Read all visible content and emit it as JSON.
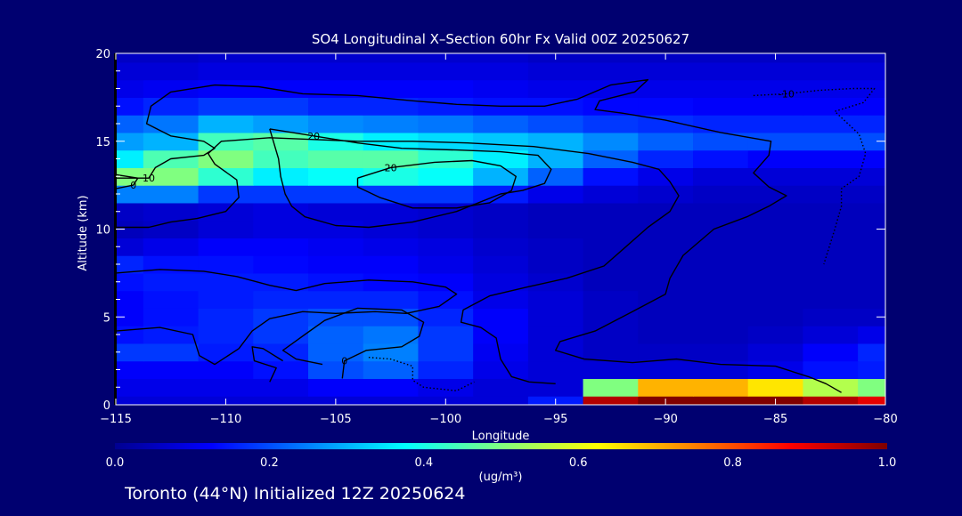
{
  "chart_data": {
    "type": "heatmap",
    "title": "SO4 Longitudinal X–Section 60hr  Fx Valid 00Z 20250627",
    "subtitle": "Toronto (44°N) Initialized 12Z 20250624",
    "xlabel": "Longitude",
    "ylabel": "Altitude (km)",
    "xlim": [
      -115,
      -80
    ],
    "ylim": [
      0,
      20
    ],
    "x_ticks": [
      -115,
      -110,
      -105,
      -100,
      -95,
      -90,
      -85,
      -80
    ],
    "x_tick_labels": [
      "−115",
      "−110",
      "−105",
      "−100",
      "−95",
      "−90",
      "−85",
      "−80"
    ],
    "y_ticks": [
      0,
      5,
      10,
      15,
      20
    ],
    "y_tick_labels": [
      "0",
      "5",
      "10",
      "15",
      "20"
    ],
    "colorbar": {
      "label": "(ug/m³)",
      "range": [
        0.0,
        1.0
      ],
      "ticks": [
        0.0,
        0.2,
        0.4,
        0.6,
        0.8,
        1.0
      ],
      "tick_labels": [
        "0.0",
        "0.2",
        "0.4",
        "0.6",
        "0.8",
        "1.0"
      ],
      "colormap": [
        "#000090",
        "#0000ff",
        "#0080ff",
        "#00ffff",
        "#80ff80",
        "#ffff00",
        "#ff8000",
        "#ff0000",
        "#800000"
      ]
    },
    "x": [
      -115,
      -112.5,
      -110,
      -107.5,
      -105,
      -102.5,
      -100,
      -97.5,
      -95,
      -92.5,
      -90,
      -87.5,
      -85,
      -82.5,
      -80
    ],
    "y": [
      0,
      1,
      2,
      3,
      4,
      5,
      6,
      7,
      8,
      9,
      10,
      11,
      12,
      13,
      14,
      15,
      16,
      17,
      18,
      19,
      20
    ],
    "values": [
      [
        0.08,
        0.08,
        0.08,
        0.08,
        0.08,
        0.08,
        0.08,
        0.08,
        0.15,
        0.95,
        1.0,
        1.0,
        1.0,
        0.95,
        0.9
      ],
      [
        0.1,
        0.1,
        0.1,
        0.1,
        0.12,
        0.12,
        0.1,
        0.08,
        0.08,
        0.5,
        0.7,
        0.7,
        0.65,
        0.55,
        0.5
      ],
      [
        0.12,
        0.12,
        0.12,
        0.14,
        0.2,
        0.22,
        0.16,
        0.1,
        0.08,
        0.08,
        0.08,
        0.08,
        0.1,
        0.14,
        0.15
      ],
      [
        0.18,
        0.18,
        0.15,
        0.16,
        0.22,
        0.25,
        0.18,
        0.11,
        0.08,
        0.06,
        0.06,
        0.06,
        0.08,
        0.12,
        0.16
      ],
      [
        0.14,
        0.15,
        0.16,
        0.18,
        0.22,
        0.24,
        0.18,
        0.12,
        0.08,
        0.06,
        0.05,
        0.05,
        0.06,
        0.08,
        0.1
      ],
      [
        0.12,
        0.14,
        0.16,
        0.18,
        0.2,
        0.2,
        0.16,
        0.12,
        0.08,
        0.06,
        0.05,
        0.05,
        0.05,
        0.06,
        0.06
      ],
      [
        0.12,
        0.14,
        0.15,
        0.16,
        0.16,
        0.16,
        0.14,
        0.1,
        0.08,
        0.06,
        0.05,
        0.05,
        0.05,
        0.05,
        0.05
      ],
      [
        0.14,
        0.15,
        0.15,
        0.15,
        0.14,
        0.13,
        0.12,
        0.09,
        0.07,
        0.05,
        0.05,
        0.05,
        0.05,
        0.05,
        0.05
      ],
      [
        0.16,
        0.14,
        0.14,
        0.13,
        0.12,
        0.12,
        0.1,
        0.08,
        0.06,
        0.05,
        0.05,
        0.05,
        0.05,
        0.05,
        0.05
      ],
      [
        0.08,
        0.1,
        0.12,
        0.12,
        0.11,
        0.1,
        0.09,
        0.07,
        0.06,
        0.05,
        0.05,
        0.05,
        0.05,
        0.05,
        0.05
      ],
      [
        0.05,
        0.06,
        0.08,
        0.09,
        0.09,
        0.08,
        0.07,
        0.06,
        0.05,
        0.05,
        0.05,
        0.05,
        0.05,
        0.05,
        0.05
      ],
      [
        0.06,
        0.07,
        0.08,
        0.09,
        0.08,
        0.08,
        0.07,
        0.06,
        0.05,
        0.05,
        0.05,
        0.05,
        0.05,
        0.05,
        0.05
      ],
      [
        0.25,
        0.25,
        0.18,
        0.18,
        0.18,
        0.18,
        0.18,
        0.15,
        0.1,
        0.08,
        0.07,
        0.06,
        0.06,
        0.06,
        0.06
      ],
      [
        0.5,
        0.5,
        0.42,
        0.36,
        0.38,
        0.4,
        0.38,
        0.3,
        0.22,
        0.14,
        0.1,
        0.08,
        0.08,
        0.08,
        0.08
      ],
      [
        0.36,
        0.45,
        0.5,
        0.44,
        0.46,
        0.46,
        0.42,
        0.36,
        0.3,
        0.22,
        0.16,
        0.14,
        0.12,
        0.12,
        0.12
      ],
      [
        0.28,
        0.3,
        0.44,
        0.46,
        0.4,
        0.36,
        0.34,
        0.32,
        0.3,
        0.26,
        0.22,
        0.2,
        0.2,
        0.2,
        0.2
      ],
      [
        0.22,
        0.24,
        0.3,
        0.28,
        0.26,
        0.25,
        0.24,
        0.22,
        0.2,
        0.18,
        0.17,
        0.16,
        0.16,
        0.16,
        0.16
      ],
      [
        0.14,
        0.16,
        0.18,
        0.18,
        0.16,
        0.16,
        0.15,
        0.14,
        0.14,
        0.13,
        0.13,
        0.12,
        0.12,
        0.12,
        0.12
      ],
      [
        0.1,
        0.11,
        0.12,
        0.12,
        0.12,
        0.12,
        0.12,
        0.11,
        0.1,
        0.1,
        0.1,
        0.1,
        0.1,
        0.1,
        0.1
      ],
      [
        0.08,
        0.08,
        0.09,
        0.09,
        0.09,
        0.09,
        0.09,
        0.09,
        0.08,
        0.08,
        0.08,
        0.08,
        0.08,
        0.08,
        0.08
      ],
      [
        0.06,
        0.06,
        0.07,
        0.07,
        0.07,
        0.07,
        0.07,
        0.07,
        0.06,
        0.06,
        0.06,
        0.06,
        0.06,
        0.06,
        0.06
      ]
    ],
    "contours": [
      {
        "label": "10",
        "style": "solid",
        "points": [
          [
            -115,
            12.9
          ],
          [
            -113.5,
            12.9
          ],
          [
            -113.2,
            13.5
          ],
          [
            -112.5,
            14.0
          ],
          [
            -111.0,
            14.2
          ],
          [
            -110.5,
            14.6
          ],
          [
            -111.0,
            15.0
          ],
          [
            -112.5,
            15.3
          ],
          [
            -113.6,
            16.0
          ],
          [
            -113.4,
            17.0
          ],
          [
            -112.5,
            17.8
          ],
          [
            -110.5,
            18.2
          ],
          [
            -108.5,
            18.1
          ],
          [
            -106.5,
            17.7
          ],
          [
            -104.0,
            17.6
          ],
          [
            -101.5,
            17.3
          ],
          [
            -99.5,
            17.1
          ],
          [
            -97.5,
            17.0
          ],
          [
            -95.5,
            17.0
          ],
          [
            -94.0,
            17.4
          ],
          [
            -92.5,
            18.2
          ],
          [
            -90.8,
            18.5
          ],
          [
            -91.4,
            17.8
          ],
          [
            -93.0,
            17.3
          ],
          [
            -93.2,
            16.8
          ],
          [
            -92.0,
            16.6
          ],
          [
            -90.0,
            16.2
          ],
          [
            -87.5,
            15.5
          ],
          [
            -85.2,
            15.0
          ],
          [
            -85.3,
            14.2
          ],
          [
            -86.0,
            13.2
          ],
          [
            -85.3,
            12.4
          ],
          [
            -84.5,
            11.9
          ],
          [
            -85.3,
            11.3
          ],
          [
            -86.3,
            10.7
          ],
          [
            -87.8,
            10.0
          ],
          [
            -89.2,
            8.5
          ],
          [
            -89.8,
            7.2
          ],
          [
            -90.0,
            6.3
          ],
          [
            -91.5,
            5.3
          ],
          [
            -93.2,
            4.2
          ],
          [
            -94.8,
            3.6
          ],
          [
            -95.0,
            3.1
          ],
          [
            -93.7,
            2.6
          ],
          [
            -91.5,
            2.4
          ],
          [
            -89.5,
            2.6
          ],
          [
            -87.5,
            2.3
          ],
          [
            -85.0,
            2.2
          ],
          [
            -83.5,
            1.6
          ],
          [
            -82.7,
            1.2
          ],
          [
            -82.0,
            0.7
          ]
        ]
      },
      {
        "label": "",
        "style": "solid",
        "points": [
          [
            -115,
            10.1
          ],
          [
            -113.5,
            10.1
          ],
          [
            -112.5,
            10.4
          ],
          [
            -111.3,
            10.6
          ],
          [
            -110.0,
            11.0
          ],
          [
            -109.4,
            11.8
          ],
          [
            -109.5,
            12.8
          ],
          [
            -110.5,
            13.7
          ],
          [
            -110.8,
            14.3
          ],
          [
            -110.2,
            15.0
          ],
          [
            -108.0,
            15.2
          ],
          [
            -106.0,
            15.1
          ],
          [
            -104.0,
            15.0
          ],
          [
            -101.5,
            15.0
          ],
          [
            -99.0,
            14.9
          ],
          [
            -96.0,
            14.7
          ],
          [
            -93.5,
            14.3
          ],
          [
            -91.5,
            13.8
          ],
          [
            -90.3,
            13.4
          ],
          [
            -89.8,
            12.7
          ],
          [
            -89.4,
            11.9
          ],
          [
            -89.8,
            11.0
          ],
          [
            -90.8,
            10.1
          ],
          [
            -91.8,
            9.0
          ],
          [
            -92.8,
            7.9
          ],
          [
            -94.5,
            7.2
          ],
          [
            -96.3,
            6.7
          ],
          [
            -98.0,
            6.2
          ],
          [
            -99.2,
            5.4
          ],
          [
            -99.3,
            4.7
          ],
          [
            -98.4,
            4.4
          ],
          [
            -97.7,
            3.8
          ],
          [
            -97.5,
            2.6
          ],
          [
            -97.0,
            1.6
          ],
          [
            -96.2,
            1.3
          ],
          [
            -95.0,
            1.2
          ]
        ]
      },
      {
        "label": "20",
        "style": "solid",
        "points": [
          [
            -108.0,
            15.7
          ],
          [
            -106.0,
            15.3
          ],
          [
            -104.0,
            14.9
          ],
          [
            -102.0,
            14.6
          ],
          [
            -99.5,
            14.5
          ],
          [
            -97.5,
            14.4
          ],
          [
            -95.8,
            14.2
          ],
          [
            -95.2,
            13.4
          ],
          [
            -95.5,
            12.6
          ],
          [
            -96.5,
            12.2
          ],
          [
            -97.5,
            12.0
          ],
          [
            -99.5,
            11.0
          ],
          [
            -101.5,
            10.4
          ],
          [
            -103.5,
            10.1
          ],
          [
            -105.0,
            10.2
          ],
          [
            -106.4,
            10.7
          ],
          [
            -107.0,
            11.3
          ],
          [
            -107.3,
            12.0
          ],
          [
            -107.5,
            13.0
          ],
          [
            -107.6,
            14.0
          ],
          [
            -108.0,
            15.7
          ]
        ]
      },
      {
        "label": "20",
        "style": "solid",
        "points": [
          [
            -104.0,
            12.9
          ],
          [
            -102.5,
            13.5
          ],
          [
            -100.5,
            13.8
          ],
          [
            -98.8,
            13.9
          ],
          [
            -97.5,
            13.6
          ],
          [
            -96.8,
            13.0
          ],
          [
            -97.0,
            12.2
          ],
          [
            -98.0,
            11.5
          ],
          [
            -99.5,
            11.2
          ],
          [
            -101.5,
            11.2
          ],
          [
            -103.0,
            11.8
          ],
          [
            -104.0,
            12.4
          ],
          [
            -104.0,
            12.9
          ]
        ]
      },
      {
        "label": "",
        "style": "solid",
        "points": [
          [
            -115,
            7.5
          ],
          [
            -113.0,
            7.7
          ],
          [
            -111.0,
            7.6
          ],
          [
            -109.5,
            7.3
          ],
          [
            -108.0,
            6.8
          ],
          [
            -106.8,
            6.5
          ],
          [
            -105.5,
            6.9
          ],
          [
            -103.5,
            7.1
          ],
          [
            -101.5,
            7.0
          ],
          [
            -100.0,
            6.7
          ],
          [
            -99.5,
            6.3
          ],
          [
            -100.3,
            5.6
          ],
          [
            -101.8,
            5.2
          ],
          [
            -103.2,
            5.3
          ],
          [
            -105.0,
            5.2
          ],
          [
            -106.5,
            5.3
          ],
          [
            -108.0,
            4.9
          ],
          [
            -108.8,
            4.2
          ],
          [
            -109.4,
            3.2
          ],
          [
            -110.5,
            2.3
          ],
          [
            -111.2,
            2.8
          ],
          [
            -111.5,
            4.0
          ],
          [
            -113.0,
            4.4
          ],
          [
            -115,
            4.2
          ]
        ]
      },
      {
        "label": "0",
        "style": "solid",
        "points": [
          [
            -104.7,
            1.5
          ],
          [
            -104.6,
            2.5
          ],
          [
            -103.6,
            3.1
          ],
          [
            -102.0,
            3.3
          ],
          [
            -101.2,
            3.9
          ],
          [
            -101.0,
            4.7
          ],
          [
            -102.0,
            5.4
          ],
          [
            -104.0,
            5.5
          ],
          [
            -105.5,
            4.8
          ],
          [
            -106.4,
            4.0
          ],
          [
            -107.4,
            3.1
          ],
          [
            -106.8,
            2.6
          ],
          [
            -105.6,
            2.3
          ]
        ]
      },
      {
        "label": "",
        "style": "solid",
        "points": [
          [
            -108.0,
            1.3
          ],
          [
            -107.7,
            2.1
          ],
          [
            -108.7,
            2.5
          ],
          [
            -108.8,
            3.3
          ],
          [
            -108.3,
            3.2
          ],
          [
            -107.4,
            2.5
          ]
        ]
      },
      {
        "label": "0",
        "style": "solid",
        "points": [
          [
            -115,
            12.3
          ],
          [
            -114.2,
            12.5
          ],
          [
            -114.0,
            12.9
          ],
          [
            -115,
            13.1
          ]
        ]
      },
      {
        "label": "-10",
        "style": "dotted",
        "points": [
          [
            -86.0,
            17.6
          ],
          [
            -84.5,
            17.7
          ],
          [
            -83.0,
            17.9
          ],
          [
            -81.5,
            18.0
          ],
          [
            -80.5,
            18.0
          ],
          [
            -81.0,
            17.2
          ],
          [
            -82.3,
            16.7
          ],
          [
            -81.2,
            15.4
          ],
          [
            -80.9,
            14.3
          ],
          [
            -81.2,
            13.0
          ],
          [
            -82.0,
            12.3
          ],
          [
            -82.0,
            11.3
          ],
          [
            -82.3,
            10.0
          ],
          [
            -82.8,
            8.0
          ]
        ]
      },
      {
        "label": "",
        "style": "dotted",
        "points": [
          [
            -103.5,
            2.7
          ],
          [
            -102.5,
            2.6
          ],
          [
            -101.5,
            2.2
          ],
          [
            -101.5,
            1.4
          ],
          [
            -101.0,
            1.0
          ],
          [
            -99.5,
            0.8
          ],
          [
            -98.7,
            1.3
          ]
        ]
      }
    ]
  }
}
